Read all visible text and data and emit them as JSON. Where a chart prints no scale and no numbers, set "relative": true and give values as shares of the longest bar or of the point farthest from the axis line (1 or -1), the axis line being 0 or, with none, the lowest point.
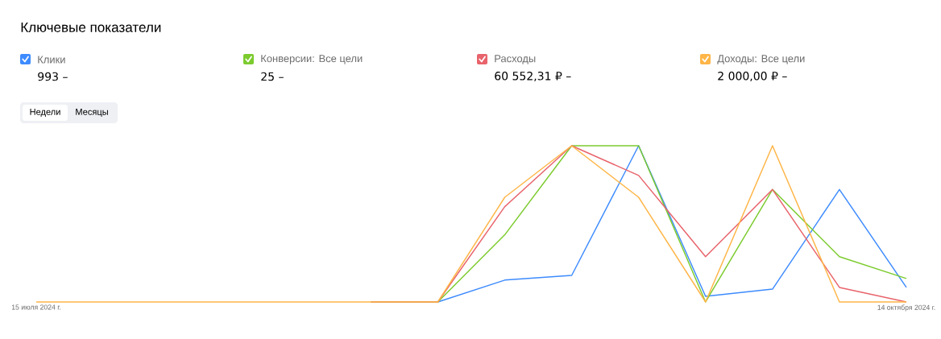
{
  "chart_data": {
    "type": "line",
    "title": "Ключевые показатели",
    "categories": [
      "15 июля 2024 г.",
      null,
      null,
      null,
      null,
      null,
      null,
      null,
      null,
      null,
      null,
      null,
      null,
      "14 октября 2024 г."
    ],
    "series": [
      {
        "name": "Клики",
        "color": "#3d8bff",
        "values": [
          null,
          null,
          null,
          null,
          null,
          0,
          0,
          0.14,
          0.17,
          1,
          0.036,
          0.082,
          0.72,
          0.093
        ]
      },
      {
        "name": "Конверсии: Все цели",
        "color": "#7ccb2e",
        "values": [
          null,
          null,
          null,
          null,
          null,
          0,
          0,
          0.43,
          1,
          1,
          0,
          0.72,
          0.29,
          0.15
        ]
      },
      {
        "name": "Расходы",
        "color": "#e8636b",
        "values": [
          null,
          null,
          null,
          null,
          null,
          0,
          0,
          0.61,
          1,
          0.81,
          0.29,
          0.72,
          0.093,
          0
        ]
      },
      {
        "name": "Доходы: Все цели",
        "color": "#ffb547",
        "values": [
          0,
          0,
          0,
          0,
          0,
          0,
          0,
          0.67,
          1,
          0.67,
          0,
          1,
          0,
          0
        ]
      }
    ],
    "annotations": [
      "993 –",
      "25 –",
      "60 552,31 ₽ –",
      "2 000,00 ₽ –",
      "Недели",
      "Месяцы"
    ],
    "relative": true,
    "legend": "top",
    "marker": "none",
    "line_style": "solid"
  }
}
